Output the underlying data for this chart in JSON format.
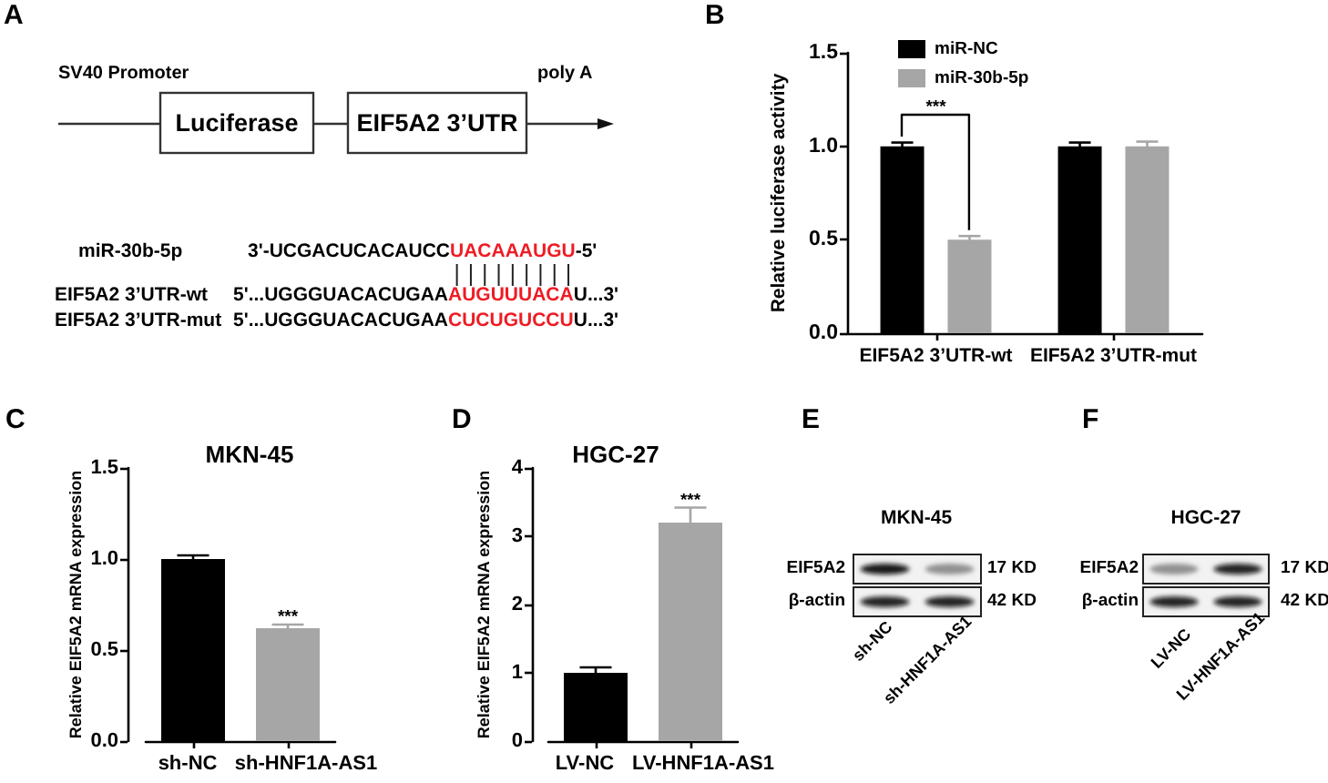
{
  "chart_data": [
    {
      "type": "other",
      "annotations": [
        "A",
        "SV40 Promoter",
        "Luciferase",
        "EIF5A2 3’UTR",
        "poly A",
        "miR-30b-5p",
        "3'-UCGACUCACAUCC",
        "UACAAAUGU",
        "-5'",
        "EIF5A2 3’UTR-wt",
        "5'...UGGGUACACUGAA",
        "AUGUUUACA",
        "U...3'",
        "EIF5A2 3’UTR-mut",
        "5'...UGGGUACACUGAA",
        "CUCUGUCCU",
        "U...3'"
      ]
    },
    {
      "type": "bar",
      "ylabel": "Relative luciferase activity",
      "categories": [
        "EIF5A2 3’UTR-wt",
        "EIF5A2 3’UTR-mut"
      ],
      "series": [
        {
          "name": "miR-NC",
          "color": "#000000",
          "values": [
            1.0,
            1.0
          ],
          "errors": [
            0.02,
            0.02
          ]
        },
        {
          "name": "miR-30b-5p",
          "color": "#a6a6a6",
          "values": [
            0.5,
            1.0
          ],
          "errors": [
            0.02,
            0.025
          ]
        }
      ],
      "ylim": [
        0,
        1.5
      ],
      "yticks": [
        {
          "value": 0,
          "label": "0.0"
        },
        {
          "value": 0.5,
          "label": "0.5"
        },
        {
          "value": 1,
          "label": "1.0"
        },
        {
          "value": 1.5,
          "label": "1.5"
        }
      ],
      "legend": "top left",
      "annotations": [
        "B",
        "***"
      ]
    },
    {
      "type": "bar",
      "title": "MKN-45",
      "ylabel": "Relative EIF5A2 mRNA expression",
      "categories": [
        "sh-NC",
        "sh-HNF1A-AS1"
      ],
      "values": [
        1.0,
        0.62
      ],
      "colors": [
        "#000000",
        "#a6a6a6"
      ],
      "errors": [
        0.02,
        0.02
      ],
      "ylim": [
        0,
        1.5
      ],
      "yticks": [
        {
          "value": 0,
          "label": "0.0"
        },
        {
          "value": 0.5,
          "label": "0.5"
        },
        {
          "value": 1,
          "label": "1.0"
        },
        {
          "value": 1.5,
          "label": "1.5"
        }
      ],
      "annotations": [
        "C",
        "***"
      ]
    },
    {
      "type": "bar",
      "title": "HGC-27",
      "ylabel": "Relative EIF5A2 mRNA expression",
      "categories": [
        "LV-NC",
        "LV-HNF1A-AS1"
      ],
      "values": [
        1.0,
        3.2
      ],
      "colors": [
        "#000000",
        "#a6a6a6"
      ],
      "errors": [
        0.08,
        0.22
      ],
      "ylim": [
        0,
        4
      ],
      "yticks": [
        0,
        1,
        2,
        3,
        4
      ],
      "annotations": [
        "D",
        "***"
      ]
    },
    {
      "type": "other",
      "title": "MKN-45",
      "annotations": [
        "E",
        "EIF5A2",
        "β-actin",
        "17 KD",
        "42 KD",
        "sh-NC",
        "sh-HNF1A-AS1"
      ]
    },
    {
      "type": "other",
      "title": "HGC-27",
      "annotations": [
        "F",
        "EIF5A2",
        "β-actin",
        "17 KD",
        "42 KD",
        "LV-NC",
        "LV-HNF1A-AS1"
      ]
    }
  ]
}
